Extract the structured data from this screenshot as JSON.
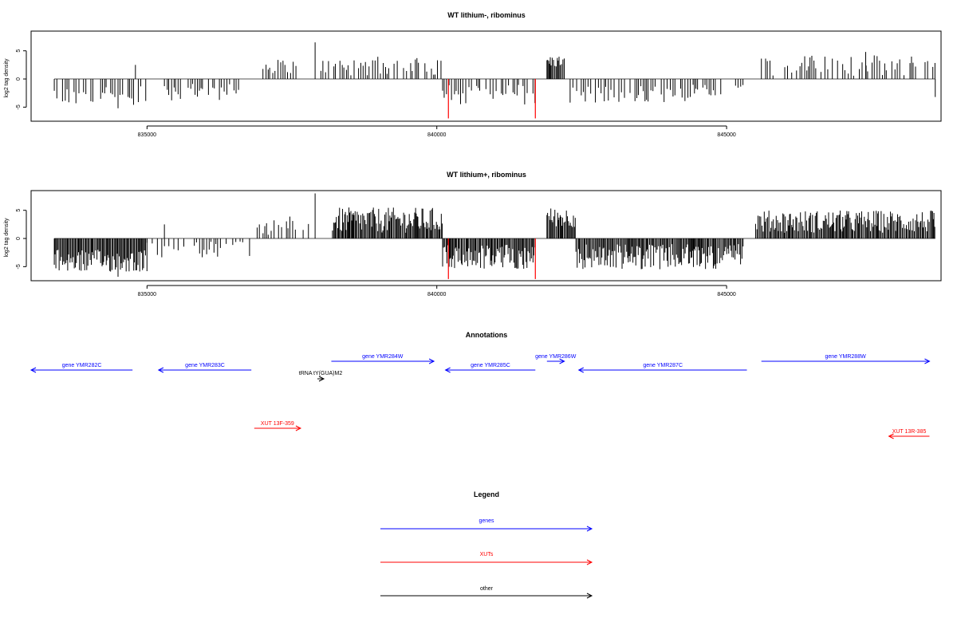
{
  "chart_data": [
    {
      "type": "bar",
      "title": "WT lithium-, ribominus",
      "xlabel": "",
      "ylabel": "log2 tag density",
      "xlim": [
        833000,
        848700
      ],
      "ylim": [
        -7.5,
        8.5
      ],
      "x_ticks": [
        835000,
        840000,
        845000
      ],
      "y_ticks": [
        -5,
        0,
        5
      ],
      "grid": false,
      "baseline": 0,
      "segments": [
        {
          "range": [
            833400,
            835000
          ],
          "strand": "neg",
          "min": 1.0,
          "max": 4.6,
          "density": "sparse"
        },
        {
          "range": [
            835300,
            836600
          ],
          "strand": "neg",
          "min": 0.5,
          "max": 3.8,
          "density": "sparse"
        },
        {
          "range": [
            837000,
            837700
          ],
          "strand": "pos",
          "min": 1.0,
          "max": 3.5,
          "density": "sparse"
        },
        {
          "range": [
            838000,
            840100
          ],
          "strand": "pos",
          "min": 0.5,
          "max": 4.0,
          "density": "sparse"
        },
        {
          "range": [
            840100,
            841700
          ],
          "strand": "neg",
          "min": 1.0,
          "max": 4.6,
          "density": "sparse"
        },
        {
          "range": [
            841900,
            842200
          ],
          "strand": "pos",
          "min": 2.0,
          "max": 4.2,
          "density": "dense"
        },
        {
          "range": [
            842300,
            845300
          ],
          "strand": "neg",
          "min": 1.0,
          "max": 4.2,
          "density": "sparse"
        },
        {
          "range": [
            845600,
            848600
          ],
          "strand": "pos",
          "min": 0.5,
          "max": 4.2,
          "density": "sparse"
        }
      ],
      "peaks": [
        {
          "x": 834800,
          "y": 2.5
        },
        {
          "x": 837900,
          "y": 6.5
        },
        {
          "x": 847400,
          "y": 4.8
        },
        {
          "x": 834500,
          "y": -5.2
        },
        {
          "x": 848600,
          "y": -3.2
        }
      ],
      "highlights": [
        {
          "x": 840200,
          "y": -7.0,
          "color": "#ff0000"
        },
        {
          "x": 841700,
          "y": -7.0,
          "color": "#ff0000"
        }
      ],
      "bar_color": "#000000"
    },
    {
      "type": "bar",
      "title": "WT lithium+, ribominus",
      "xlabel": "",
      "ylabel": "log2 tag density",
      "xlim": [
        833000,
        848700
      ],
      "ylim": [
        -7.5,
        8.5
      ],
      "x_ticks": [
        835000,
        840000,
        845000
      ],
      "y_ticks": [
        -5,
        0,
        5
      ],
      "grid": false,
      "baseline": 0,
      "segments": [
        {
          "range": [
            833400,
            835000
          ],
          "strand": "neg",
          "min": 2.0,
          "max": 6.0,
          "density": "dense"
        },
        {
          "range": [
            835000,
            836800
          ],
          "strand": "neg",
          "min": 0.5,
          "max": 3.5,
          "density": "sparse"
        },
        {
          "range": [
            836900,
            837800
          ],
          "strand": "pos",
          "min": 0.5,
          "max": 4.0,
          "density": "sparse"
        },
        {
          "range": [
            838200,
            840100
          ],
          "strand": "pos",
          "min": 1.0,
          "max": 5.5,
          "density": "dense"
        },
        {
          "range": [
            840100,
            841700
          ],
          "strand": "neg",
          "min": 1.0,
          "max": 5.5,
          "density": "dense"
        },
        {
          "range": [
            841900,
            842400
          ],
          "strand": "pos",
          "min": 2.0,
          "max": 5.5,
          "density": "dense"
        },
        {
          "range": [
            842400,
            845300
          ],
          "strand": "neg",
          "min": 1.0,
          "max": 5.5,
          "density": "dense"
        },
        {
          "range": [
            845500,
            848600
          ],
          "strand": "pos",
          "min": 1.0,
          "max": 5.0,
          "density": "dense"
        }
      ],
      "peaks": [
        {
          "x": 837900,
          "y": 8.0
        },
        {
          "x": 835300,
          "y": 2.5
        },
        {
          "x": 834500,
          "y": -6.8
        }
      ],
      "highlights": [
        {
          "x": 840200,
          "y": -7.2,
          "color": "#ff0000"
        },
        {
          "x": 841700,
          "y": -7.2,
          "color": "#ff0000"
        }
      ],
      "bar_color": "#000000"
    }
  ],
  "annotations": {
    "title": "Annotations",
    "features": [
      {
        "label": "gene YMR282C",
        "start": 833000,
        "end": 834750,
        "strand": "-",
        "row": 1,
        "color": "#0000ff"
      },
      {
        "label": "gene YMR283C",
        "start": 835200,
        "end": 836800,
        "strand": "-",
        "row": 1,
        "color": "#0000ff"
      },
      {
        "label": "gene YMR284W",
        "start": 838180,
        "end": 839950,
        "strand": "+",
        "row": 0,
        "color": "#0000ff"
      },
      {
        "label": "gene YMR285C",
        "start": 840150,
        "end": 841700,
        "strand": "-",
        "row": 1,
        "color": "#0000ff"
      },
      {
        "label": "gene YMR286W",
        "start": 841900,
        "end": 842200,
        "strand": "+",
        "row": 0,
        "color": "#0000ff"
      },
      {
        "label": "gene YMR287C",
        "start": 842450,
        "end": 845350,
        "strand": "-",
        "row": 1,
        "color": "#0000ff"
      },
      {
        "label": "gene YMR288W",
        "start": 845600,
        "end": 848500,
        "strand": "+",
        "row": 0,
        "color": "#0000ff"
      },
      {
        "label": "tRNA tY(GUA)M2",
        "start": 837800,
        "end": 837900,
        "strand": "+",
        "row": 2,
        "color": "#000000"
      },
      {
        "label": "XUT 13F-359",
        "start": 836850,
        "end": 837650,
        "strand": "+",
        "row": 3,
        "color": "#ff0000"
      },
      {
        "label": "XUT 13R-385",
        "start": 847800,
        "end": 848500,
        "strand": "-",
        "row": 4,
        "color": "#ff0000"
      }
    ]
  },
  "legend": {
    "title": "Legend",
    "items": [
      {
        "label": "genes",
        "color": "#0000ff"
      },
      {
        "label": "XUTs",
        "color": "#ff0000"
      },
      {
        "label": "other",
        "color": "#000000"
      }
    ]
  }
}
